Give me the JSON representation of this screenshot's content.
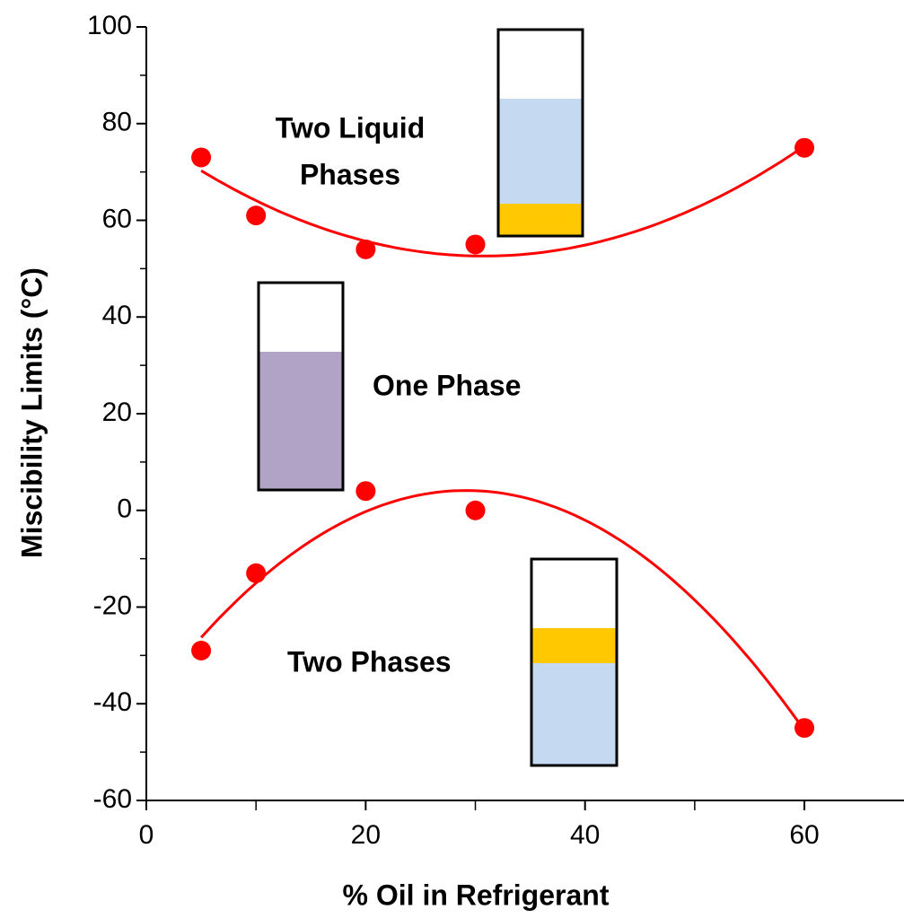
{
  "chart_data": {
    "type": "scatter",
    "x_label": "% Oil in Refrigerant",
    "y_label": "Miscibility Limits (°C)",
    "series": [
      {
        "color": "#ff0000",
        "x": [
          5,
          10,
          20,
          30,
          60
        ],
        "values": [
          73,
          61,
          54,
          55,
          75
        ]
      },
      {
        "color": "#ff0000",
        "x": [
          5,
          10,
          20,
          30,
          60
        ],
        "values": [
          -29,
          -13,
          4,
          0,
          -45
        ]
      }
    ],
    "trendline": "polynomial-2",
    "xlim": [
      0,
      69
    ],
    "ylim": [
      -60,
      100
    ],
    "xticks": [
      0,
      20,
      40,
      60
    ],
    "xminorticks": [
      10,
      30,
      50
    ],
    "yticks": [
      -60,
      -40,
      -20,
      0,
      20,
      40,
      60,
      80,
      100
    ],
    "yminorticks": [
      -50,
      -30,
      -10,
      10,
      30,
      50,
      70,
      90
    ],
    "annotations": [
      {
        "lines": [
          "Two Liquid",
          "Phases"
        ]
      },
      {
        "lines": [
          "One Phase"
        ]
      },
      {
        "lines": [
          "Two Phases"
        ]
      }
    ]
  }
}
